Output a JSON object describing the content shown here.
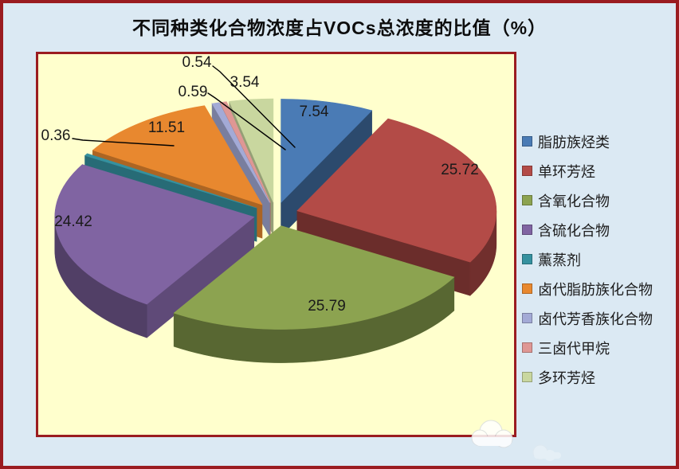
{
  "frame": {
    "outer_border_color": "#9a1c20",
    "background_color": "#dbe9f3"
  },
  "title": {
    "text": "不同种类化合物浓度占VOCs总浓度的比值（%）"
  },
  "chart_data": {
    "type": "pie",
    "variant": "3d-exploded",
    "title": "不同种类化合物浓度占VOCs总浓度的比值（%）",
    "unit": "%",
    "direction": "clockwise",
    "start_angle_deg": 0,
    "legend_position": "right",
    "plot_background": "#ffffcd",
    "plot_border_color": "#9a1c20",
    "label_color": "#1a1a1a",
    "categories": [
      "脂肪族烃类",
      "单环芳烃",
      "含氧化合物",
      "含硫化合物",
      "薰蒸剂",
      "卤代脂肪族化合物",
      "卤代芳香族化合物",
      "三卤代甲烷",
      "多环芳烃"
    ],
    "values": [
      7.54,
      25.72,
      25.79,
      24.42,
      0.36,
      11.51,
      0.59,
      0.54,
      3.54
    ],
    "value_labels": [
      "7.54",
      "25.72",
      "25.79",
      "24.42",
      "0.36",
      "11.51",
      "0.59",
      "0.54",
      "3.54"
    ],
    "colors": [
      "#4a7bb5",
      "#b34b47",
      "#8ca350",
      "#8064a2",
      "#35919f",
      "#e8882f",
      "#a3aad6",
      "#df9794",
      "#c9d79f"
    ]
  },
  "watermark": {
    "icon": "cloud-logo"
  }
}
